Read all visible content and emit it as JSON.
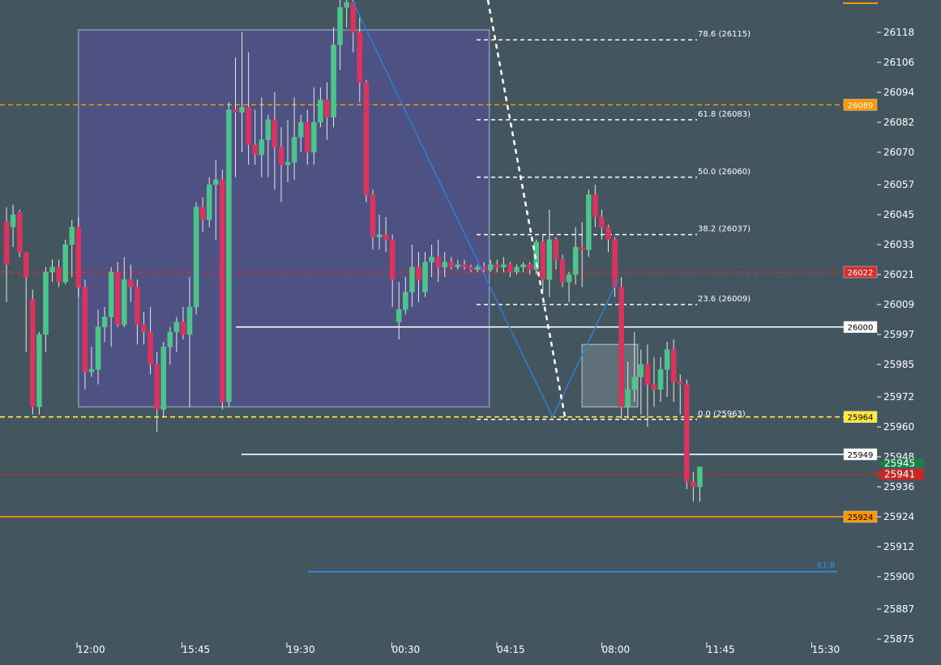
{
  "chart_data": {
    "type": "candlestick",
    "y_axis": {
      "range": [
        25870,
        26130
      ],
      "ticks": [
        26118,
        26106,
        26094,
        26082,
        26070,
        26057,
        26045,
        26033,
        26021,
        26009,
        25997,
        25985,
        25972,
        25960,
        25948,
        25936,
        25924,
        25912,
        25900,
        25887,
        25875
      ]
    },
    "x_axis": {
      "ticks": [
        "12:00",
        "15:45",
        "19:30",
        "00:30",
        "04:15",
        "08:00",
        "11:45",
        "15:30"
      ]
    },
    "horizontal_levels": [
      {
        "value": 26089,
        "label": "26089",
        "color": "#ff9800",
        "style": "dashed",
        "from_x_tick": 0,
        "tag_bg": "#ff9800",
        "tag_fg": "#ffffff"
      },
      {
        "value": 26022,
        "label": "26022",
        "color": "#d32f2f",
        "style": "dashed",
        "from_x_tick": 0,
        "tag_bg": "#d32f2f",
        "tag_fg": "#ffffff"
      },
      {
        "value": 26000,
        "label": "26000",
        "color": "#ffffff",
        "style": "solid",
        "from_x_tick": 1.5,
        "tag_bg": "#ffffff",
        "tag_fg": "#000000"
      },
      {
        "value": 25964,
        "label": "25964",
        "color": "#ffeb3b",
        "style": "dashed",
        "from_x_tick": 0,
        "tag_bg": "#ffeb3b",
        "tag_fg": "#000000"
      },
      {
        "value": 25949,
        "label": "25949",
        "color": "#ffffff",
        "style": "solid",
        "from_x_tick": 1.55,
        "tag_bg": "#ffffff",
        "tag_fg": "#000000"
      },
      {
        "value": 25941,
        "label": "25941",
        "color": "#c62828",
        "style": "solid-thin",
        "from_x_tick": 0,
        "tag_bg": "#c62828",
        "tag_fg": "#ffffff"
      },
      {
        "value": 25924,
        "label": "25924",
        "color": "#ff9800",
        "style": "solid",
        "from_x_tick": 0,
        "tag_bg": "#ff9800",
        "tag_fg": "#000000"
      }
    ],
    "price_marker_green": {
      "value": 25945,
      "label": "25945",
      "color": "#1b7f4a"
    },
    "fib_levels": [
      {
        "ratio": "78.6",
        "value": 26115,
        "label": "78.6 (26115)"
      },
      {
        "ratio": "61.8",
        "value": 26083,
        "label": "61.8 (26083)"
      },
      {
        "ratio": "50.0",
        "value": 26060,
        "label": "50.0 (26060)"
      },
      {
        "ratio": "38.2",
        "value": 26037,
        "label": "38.2 (26037)"
      },
      {
        "ratio": "23.6",
        "value": 26009,
        "label": "23.6 (26009)"
      },
      {
        "ratio": "0.0",
        "value": 25963,
        "label": "0.0 (25963)"
      }
    ],
    "fib_extension": {
      "value": 25902,
      "label": "61.8",
      "color": "#2196f3"
    },
    "candles": [
      {
        "o": 26042,
        "h": 26048,
        "c": 26025,
        "l": 26010
      },
      {
        "o": 26040,
        "h": 26049,
        "c": 26045,
        "l": 26032
      },
      {
        "o": 26046,
        "h": 26047,
        "c": 26030,
        "l": 26028
      },
      {
        "o": 26030,
        "h": 26030,
        "c": 26020,
        "l": 25990
      },
      {
        "o": 26011,
        "h": 26015,
        "c": 25968,
        "l": 25965
      },
      {
        "o": 25968,
        "h": 25998,
        "c": 25997,
        "l": 25965
      },
      {
        "o": 25997,
        "h": 26024,
        "c": 26022,
        "l": 25990
      },
      {
        "o": 26022,
        "h": 26027,
        "c": 26024,
        "l": 26018
      },
      {
        "o": 26024,
        "h": 26027,
        "c": 26018,
        "l": 26016
      },
      {
        "o": 26018,
        "h": 26035,
        "c": 26033,
        "l": 26017
      },
      {
        "o": 26033,
        "h": 26043,
        "c": 26040,
        "l": 26020
      },
      {
        "o": 26040,
        "h": 26044,
        "c": 26016,
        "l": 26012
      },
      {
        "o": 26016,
        "h": 26019,
        "c": 25982,
        "l": 25975
      },
      {
        "o": 25982,
        "h": 25992,
        "c": 25983,
        "l": 25980
      },
      {
        "o": 25983,
        "h": 26007,
        "c": 26000,
        "l": 25977
      },
      {
        "o": 26000,
        "h": 26008,
        "c": 26004,
        "l": 25994
      },
      {
        "o": 26004,
        "h": 26024,
        "c": 26022,
        "l": 25992
      },
      {
        "o": 26022,
        "h": 26026,
        "c": 26001,
        "l": 26000
      },
      {
        "o": 26001,
        "h": 26028,
        "c": 26019,
        "l": 26000
      },
      {
        "o": 26019,
        "h": 26025,
        "c": 26016,
        "l": 26010
      },
      {
        "o": 26016,
        "h": 26019,
        "c": 26001,
        "l": 25993
      },
      {
        "o": 26001,
        "h": 26006,
        "c": 25998,
        "l": 25993
      },
      {
        "o": 25998,
        "h": 26008,
        "c": 25985,
        "l": 25981
      },
      {
        "o": 25985,
        "h": 25990,
        "c": 25967,
        "l": 25958
      },
      {
        "o": 25967,
        "h": 25994,
        "c": 25992,
        "l": 25964
      },
      {
        "o": 25992,
        "h": 26000,
        "c": 25998,
        "l": 25985
      },
      {
        "o": 25998,
        "h": 26004,
        "c": 26002,
        "l": 25990
      },
      {
        "o": 26002,
        "h": 26008,
        "c": 25997,
        "l": 25995
      },
      {
        "o": 25997,
        "h": 26020,
        "c": 26008,
        "l": 25968
      },
      {
        "o": 26008,
        "h": 26050,
        "c": 26048,
        "l": 26005
      },
      {
        "o": 26048,
        "h": 26052,
        "c": 26043,
        "l": 26038
      },
      {
        "o": 26043,
        "h": 26060,
        "c": 26057,
        "l": 26040
      },
      {
        "o": 26057,
        "h": 26067,
        "c": 26059,
        "l": 26035
      },
      {
        "o": 26059,
        "h": 26063,
        "c": 25970,
        "l": 25967
      },
      {
        "o": 25970,
        "h": 26090,
        "c": 26087,
        "l": 25968
      },
      {
        "o": 26087,
        "h": 26108,
        "c": 26086,
        "l": 26060
      },
      {
        "o": 26086,
        "h": 26118,
        "c": 26088,
        "l": 26070
      },
      {
        "o": 26088,
        "h": 26110,
        "c": 26073,
        "l": 26065
      },
      {
        "o": 26073,
        "h": 26087,
        "c": 26069,
        "l": 26065
      },
      {
        "o": 26069,
        "h": 26092,
        "c": 26075,
        "l": 26060
      },
      {
        "o": 26075,
        "h": 26085,
        "c": 26083,
        "l": 26060
      },
      {
        "o": 26083,
        "h": 26094,
        "c": 26072,
        "l": 26055
      },
      {
        "o": 26072,
        "h": 26080,
        "c": 26065,
        "l": 26050
      },
      {
        "o": 26065,
        "h": 26083,
        "c": 26066,
        "l": 26058
      },
      {
        "o": 26066,
        "h": 26092,
        "c": 26076,
        "l": 26059
      },
      {
        "o": 26076,
        "h": 26085,
        "c": 26082,
        "l": 26070
      },
      {
        "o": 26082,
        "h": 26087,
        "c": 26070,
        "l": 26065
      },
      {
        "o": 26070,
        "h": 26096,
        "c": 26082,
        "l": 26065
      },
      {
        "o": 26082,
        "h": 26096,
        "c": 26091,
        "l": 26080
      },
      {
        "o": 26091,
        "h": 26098,
        "c": 26084,
        "l": 26075
      },
      {
        "o": 26084,
        "h": 26120,
        "c": 26113,
        "l": 26080
      },
      {
        "o": 26113,
        "h": 26132,
        "c": 26128,
        "l": 26103
      },
      {
        "o": 26128,
        "h": 26132,
        "c": 26130,
        "l": 26120
      },
      {
        "o": 26130,
        "h": 26133,
        "c": 26118,
        "l": 26110
      },
      {
        "o": 26118,
        "h": 26124,
        "c": 26098,
        "l": 26090
      },
      {
        "o": 26098,
        "h": 26099,
        "c": 26053,
        "l": 26050
      },
      {
        "o": 26053,
        "h": 26055,
        "c": 26036,
        "l": 26031
      },
      {
        "o": 26036,
        "h": 26045,
        "c": 26037,
        "l": 26031
      },
      {
        "o": 26037,
        "h": 26044,
        "c": 26035,
        "l": 26030
      },
      {
        "o": 26035,
        "h": 26037,
        "c": 26019,
        "l": 26008
      },
      {
        "o": 26002,
        "h": 26018,
        "c": 26007,
        "l": 25995
      },
      {
        "o": 26007,
        "h": 26020,
        "c": 26014,
        "l": 26005
      },
      {
        "o": 26014,
        "h": 26033,
        "c": 26024,
        "l": 26008
      },
      {
        "o": 26024,
        "h": 26030,
        "c": 26019,
        "l": 26010
      },
      {
        "o": 26014,
        "h": 26030,
        "c": 26026,
        "l": 26012
      },
      {
        "o": 26026,
        "h": 26033,
        "c": 26028,
        "l": 26020
      },
      {
        "o": 26028,
        "h": 26035,
        "c": 26024,
        "l": 26018
      },
      {
        "o": 26024,
        "h": 26030,
        "c": 26026,
        "l": 26020
      },
      {
        "o": 26026,
        "h": 26028,
        "c": 26024,
        "l": 26023
      },
      {
        "o": 26024,
        "h": 26027,
        "c": 26025,
        "l": 26023
      },
      {
        "o": 26025,
        "h": 26027,
        "c": 26024,
        "l": 26023
      },
      {
        "o": 26024,
        "h": 26025,
        "c": 26023,
        "l": 26022
      },
      {
        "o": 26023,
        "h": 26025,
        "c": 26024,
        "l": 26022
      },
      {
        "o": 26024,
        "h": 26026,
        "c": 26023,
        "l": 26022
      },
      {
        "o": 26023,
        "h": 26027,
        "c": 26025,
        "l": 26022
      },
      {
        "o": 26025,
        "h": 26027,
        "c": 26024,
        "l": 26022
      },
      {
        "o": 26024,
        "h": 26028,
        "c": 26025,
        "l": 26022
      },
      {
        "o": 26025,
        "h": 26026,
        "c": 26022,
        "l": 26020
      },
      {
        "o": 26022,
        "h": 26025,
        "c": 26024,
        "l": 26021
      },
      {
        "o": 26024,
        "h": 26026,
        "c": 26025,
        "l": 26022
      },
      {
        "o": 26025,
        "h": 26026,
        "c": 26023,
        "l": 26021
      },
      {
        "o": 26023,
        "h": 26035,
        "c": 26034,
        "l": 26021
      },
      {
        "o": 26034,
        "h": 26037,
        "c": 26019,
        "l": 26014
      },
      {
        "o": 26019,
        "h": 26047,
        "c": 26035,
        "l": 26012
      },
      {
        "o": 26035,
        "h": 26036,
        "c": 26027,
        "l": 26023
      },
      {
        "o": 26027,
        "h": 26029,
        "c": 26018,
        "l": 26016
      },
      {
        "o": 26018,
        "h": 26022,
        "c": 26021,
        "l": 26010
      },
      {
        "o": 26021,
        "h": 26040,
        "c": 26032,
        "l": 26017
      },
      {
        "o": 26032,
        "h": 26042,
        "c": 26031,
        "l": 26016
      },
      {
        "o": 26031,
        "h": 26055,
        "c": 26053,
        "l": 26028
      },
      {
        "o": 26053,
        "h": 26057,
        "c": 26044,
        "l": 26040
      },
      {
        "o": 26044,
        "h": 26047,
        "c": 26040,
        "l": 26035
      },
      {
        "o": 26040,
        "h": 26041,
        "c": 26035,
        "l": 26030
      },
      {
        "o": 26035,
        "h": 26036,
        "c": 26016,
        "l": 26012
      },
      {
        "o": 26016,
        "h": 26020,
        "c": 25968,
        "l": 25963
      },
      {
        "o": 25968,
        "h": 25986,
        "c": 25975,
        "l": 25963
      },
      {
        "o": 25975,
        "h": 25998,
        "c": 25980,
        "l": 25970
      },
      {
        "o": 25980,
        "h": 25991,
        "c": 25985,
        "l": 25965
      },
      {
        "o": 25985,
        "h": 25993,
        "c": 25977,
        "l": 25960
      },
      {
        "o": 25977,
        "h": 25988,
        "c": 25975,
        "l": 25968
      },
      {
        "o": 25975,
        "h": 25988,
        "c": 25983,
        "l": 25970
      },
      {
        "o": 25983,
        "h": 25994,
        "c": 25991,
        "l": 25972
      },
      {
        "o": 25991,
        "h": 25995,
        "c": 25978,
        "l": 25970
      },
      {
        "o": 25978,
        "h": 25981,
        "c": 25977,
        "l": 25965
      },
      {
        "o": 25977,
        "h": 25979,
        "c": 25938,
        "l": 25935
      },
      {
        "o": 25938,
        "h": 25942,
        "c": 25936,
        "l": 25930
      },
      {
        "o": 25936,
        "h": 25944,
        "c": 25944,
        "l": 25930
      }
    ]
  }
}
